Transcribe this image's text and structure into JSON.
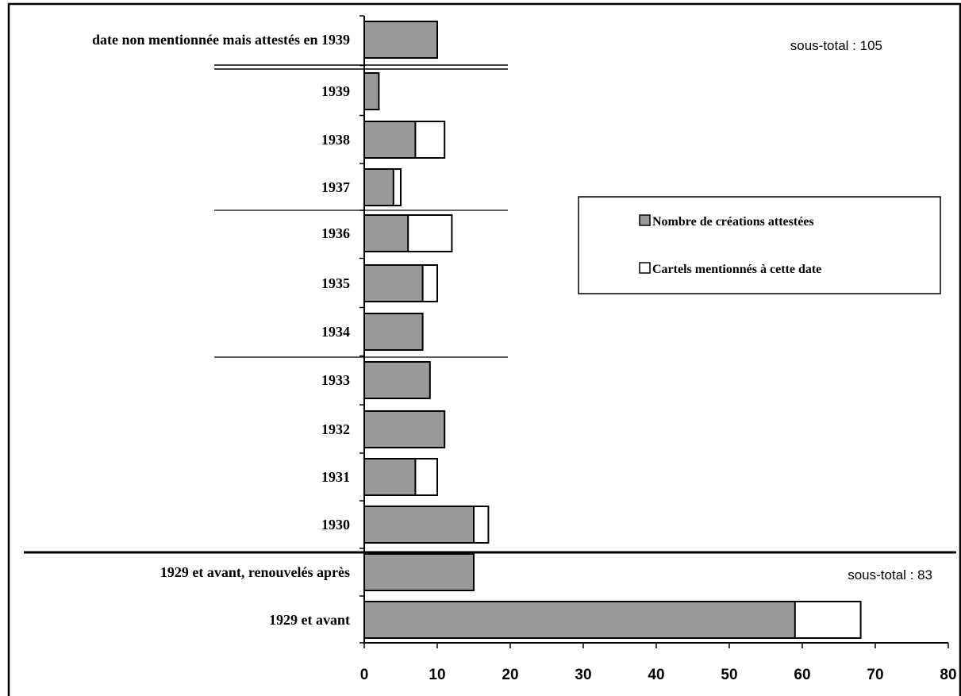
{
  "chart_data": {
    "type": "bar",
    "orientation": "horizontal",
    "stacked": true,
    "categories": [
      "date non mentionnée mais attestés en 1939",
      "1939",
      "1938",
      "1937",
      "1936",
      "1935",
      "1934",
      "1933",
      "1932",
      "1931",
      "1930",
      "1929 et avant, renouvelés après",
      "1929 et avant"
    ],
    "series": [
      {
        "name": "Nombre de créations attestées",
        "values": [
          10,
          2,
          7,
          4,
          6,
          8,
          8,
          9,
          11,
          7,
          15,
          15,
          59
        ]
      },
      {
        "name": "Cartels mentionnés à cette date",
        "values": [
          0,
          0,
          4,
          1,
          6,
          2,
          0,
          0,
          0,
          3,
          2,
          0,
          9
        ]
      }
    ],
    "xlim": [
      0,
      80
    ],
    "xticks": [
      "0",
      "10",
      "20",
      "30",
      "40",
      "50",
      "60",
      "70",
      "80"
    ],
    "legend_position": "right",
    "colors": {
      "created": "#999999",
      "cartels": "#ffffff",
      "edge": "#000000"
    },
    "annotations": [
      "sous-total : 105",
      "sous-total : 83"
    ]
  }
}
